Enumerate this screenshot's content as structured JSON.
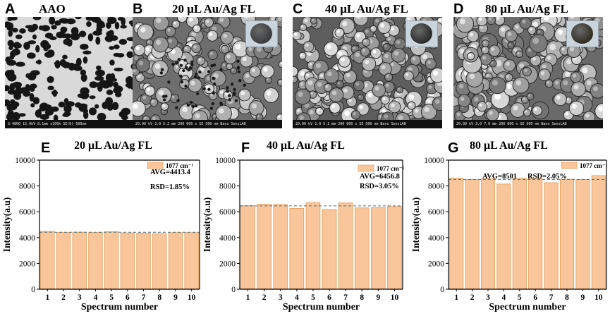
{
  "sem_panels": [
    {
      "letter": "A",
      "title": "AAO",
      "bar_text": "S-4800 15.0kV 8.1mm x100k SE(U) 500nm",
      "has_inset": false
    },
    {
      "letter": "B",
      "title": "20 μL Au/Ag FL",
      "bar_text": "20.00 kV 3.0 5.2 mm 200 000 x SE 500 nm Nano SensLAB",
      "has_inset": true,
      "inset_color": "#3a3c3e"
    },
    {
      "letter": "C",
      "title": "40 μL Au/Ag FL",
      "bar_text": "20.00 kV 3.0 5.1 mm 200 000 x SE 500 nm Nano SensLAB",
      "has_inset": true,
      "inset_color": "#2a2b2b"
    },
    {
      "letter": "D",
      "title": "80 μL Au/Ag FL",
      "bar_text": "20.00 kV 3.0 7.0 mm 200 000 x SE 500 nm Nano SensLAB",
      "has_inset": true,
      "inset_color": "#2f2d22"
    }
  ],
  "chart_data": [
    {
      "type": "bar",
      "letter": "E",
      "title": "20 μL Au/Ag FL",
      "xlabel": "Spectrum number",
      "ylabel": "Intensity(a.u)",
      "categories": [
        "1",
        "2",
        "3",
        "4",
        "5",
        "6",
        "7",
        "8",
        "9",
        "10"
      ],
      "values": [
        4480,
        4400,
        4420,
        4390,
        4450,
        4360,
        4350,
        4300,
        4380,
        4380
      ],
      "ylim": [
        0,
        10000
      ],
      "yticks": [
        "0",
        "2000",
        "4000",
        "6000",
        "8000",
        "10000"
      ],
      "legend": "1077 cm⁻¹",
      "annotations": [
        "AVG=4413.4",
        "RSD=1.85%"
      ],
      "avg_line": 4413.4,
      "bar_color": "#f8c69a",
      "bar_stroke": "#e39a55",
      "avg_line_color": "#4a6f80"
    },
    {
      "type": "bar",
      "letter": "F",
      "title": "40 μL Au/Ag FL",
      "xlabel": "Spectrum number",
      "ylabel": "Intensity(a.u)",
      "categories": [
        "1",
        "2",
        "3",
        "4",
        "5",
        "6",
        "7",
        "8",
        "9",
        "10"
      ],
      "values": [
        6480,
        6580,
        6560,
        6260,
        6700,
        6180,
        6680,
        6300,
        6320,
        6400
      ],
      "ylim": [
        0,
        10000
      ],
      "yticks": [
        "0",
        "2000",
        "4000",
        "6000",
        "8000",
        "10000"
      ],
      "legend": "1077 cm⁻¹",
      "annotations": [
        "AVG=6456.8",
        "RSD=3.05%"
      ],
      "avg_line": 6456.8,
      "bar_color": "#f8c69a",
      "bar_stroke": "#e39a55",
      "avg_line_color": "#4a6f80"
    },
    {
      "type": "bar",
      "letter": "G",
      "title": "80 μL Au/Ag FL",
      "xlabel": "Spectrum number",
      "ylabel": "Intensity(a.u)",
      "categories": [
        "1",
        "2",
        "3",
        "4",
        "5",
        "6",
        "7",
        "8",
        "9",
        "10"
      ],
      "values": [
        8600,
        8500,
        8550,
        8150,
        8580,
        8560,
        8250,
        8520,
        8500,
        8800
      ],
      "ylim": [
        0,
        10000
      ],
      "yticks": [
        "0",
        "2000",
        "4000",
        "6000",
        "8000",
        "10000"
      ],
      "legend": "1077 cm⁻¹",
      "annotations": [
        "AVG=8501",
        "RSD=2.05%"
      ],
      "avg_line": 8501,
      "bar_color": "#f8c69a",
      "bar_stroke": "#e39a55",
      "avg_line_color": "#4a6f80"
    }
  ]
}
